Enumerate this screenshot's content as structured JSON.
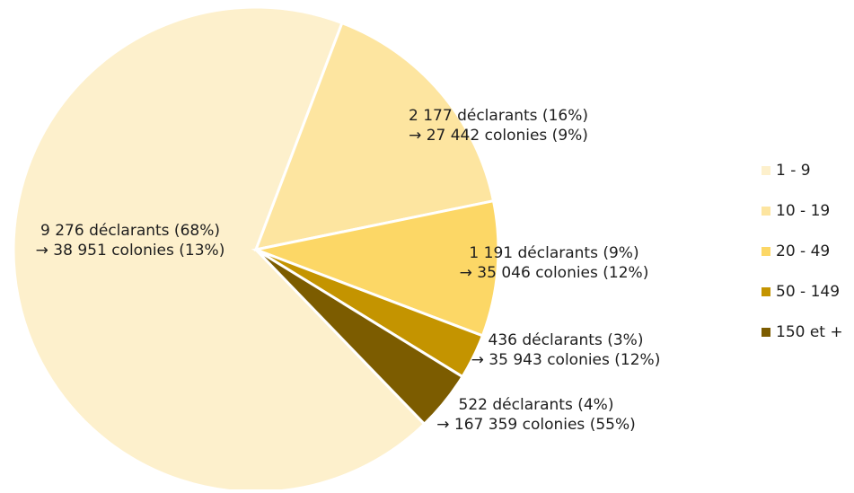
{
  "chart_data": {
    "type": "pie",
    "categories": [
      "1 - 9",
      "10 - 19",
      "20 - 49",
      "50 - 149",
      "150 et +"
    ],
    "values": [
      68,
      16,
      9,
      3,
      4
    ],
    "colors": [
      "#fdf0cc",
      "#fde5a0",
      "#fcd766",
      "#c49400",
      "#7c5c00"
    ],
    "labels": [
      [
        "9 276 déclarants (68%)",
        "→ 38 951 colonies (13%)"
      ],
      [
        "2 177 déclarants (16%)",
        "→ 27 442 colonies (9%)"
      ],
      [
        "1 191 déclarants (9%)",
        "→ 35 046 colonies (12%)"
      ],
      [
        "436 déclarants (3%)",
        "→ 35 943 colonies (12%)"
      ],
      [
        "522 déclarants (4%)",
        "→ 167 359 colonies (55%)"
      ]
    ],
    "legend": "right"
  }
}
